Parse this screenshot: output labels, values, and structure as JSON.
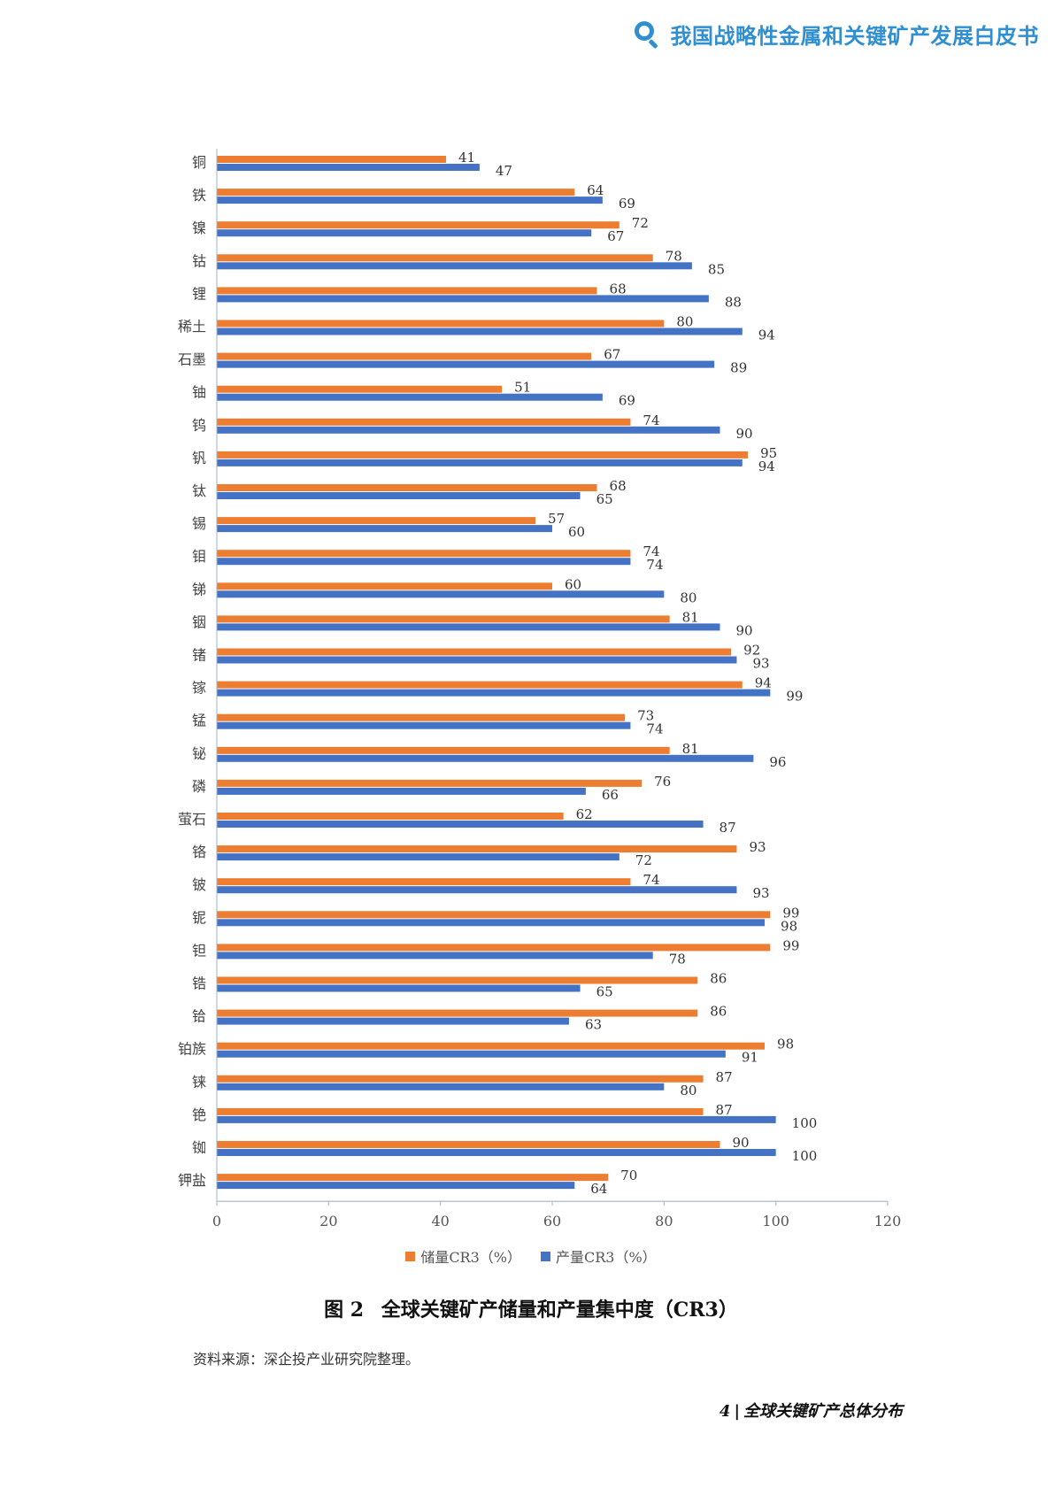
{
  "header": {
    "title": "我国战略性金属和关键矿产发展白皮书",
    "icon": "search-magnifier-icon",
    "title_color": "#2f8fd0"
  },
  "chart_data": {
    "type": "bar",
    "orientation": "horizontal",
    "categories": [
      "铜",
      "铁",
      "镍",
      "钴",
      "锂",
      "稀土",
      "石墨",
      "铀",
      "钨",
      "钒",
      "钛",
      "锡",
      "钼",
      "锑",
      "铟",
      "锗",
      "镓",
      "锰",
      "铋",
      "磷",
      "萤石",
      "铬",
      "铍",
      "铌",
      "钽",
      "锆",
      "铪",
      "铂族",
      "铼",
      "铯",
      "铷",
      "钾盐"
    ],
    "series": [
      {
        "name": "储量CR3（%）",
        "color": "#ed7d31",
        "values": [
          41,
          64,
          72,
          78,
          68,
          80,
          67,
          51,
          74,
          95,
          68,
          57,
          74,
          60,
          81,
          92,
          94,
          73,
          81,
          76,
          62,
          93,
          74,
          99,
          99,
          86,
          86,
          98,
          87,
          87,
          90,
          70
        ]
      },
      {
        "name": "产量CR3（%）",
        "color": "#4472c4",
        "values": [
          47,
          69,
          67,
          85,
          88,
          94,
          89,
          69,
          90,
          94,
          65,
          60,
          74,
          80,
          90,
          93,
          99,
          74,
          96,
          66,
          87,
          72,
          93,
          98,
          78,
          65,
          63,
          91,
          80,
          100,
          100,
          64
        ]
      }
    ],
    "xlim": [
      0,
      120
    ],
    "xticks": [
      0,
      20,
      40,
      60,
      80,
      100,
      120
    ],
    "grid": false,
    "legend_position": "bottom"
  },
  "caption": {
    "label": "图 2",
    "text": "全球关键矿产储量和产量集中度（CR3）"
  },
  "source": "资料来源：深企投产业研究院整理。",
  "footer": {
    "page": "4",
    "separator": "|",
    "section": "全球关键矿产总体分布"
  }
}
